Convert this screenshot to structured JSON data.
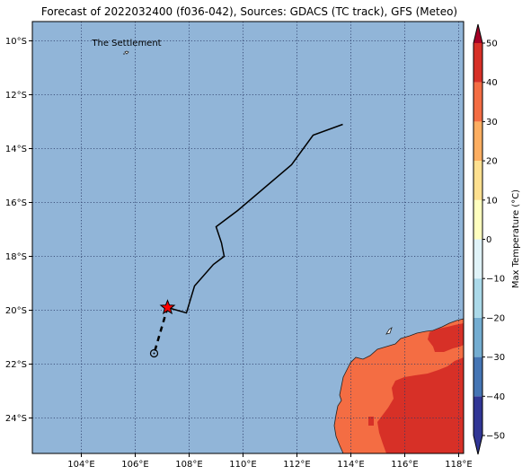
{
  "title": "Forecast of 2022032400 (f036-042), Sources: GDACS (TC track), GFS (Meteo)",
  "map": {
    "place_label": "The Settlement",
    "lon_ticks": [
      "104°E",
      "106°E",
      "108°E",
      "110°E",
      "112°E",
      "114°E",
      "116°E",
      "118°E"
    ],
    "lat_ticks": [
      "10°S",
      "12°S",
      "14°S",
      "16°S",
      "18°S",
      "20°S",
      "22°S",
      "24°S"
    ],
    "ocean_color": "#91b5d8",
    "land_colors": {
      "hot": "#d73027",
      "warm": "#f46d43"
    },
    "track": {
      "past_lonlat": [
        [
          113.7,
          -13.1
        ],
        [
          112.6,
          -13.5
        ],
        [
          111.8,
          -14.6
        ],
        [
          109.8,
          -16.3
        ],
        [
          109.0,
          -16.9
        ],
        [
          109.2,
          -17.5
        ],
        [
          109.3,
          -18.0
        ],
        [
          108.9,
          -18.3
        ],
        [
          108.2,
          -19.1
        ],
        [
          107.9,
          -20.1
        ],
        [
          107.2,
          -19.9
        ]
      ],
      "current_position": [
        107.2,
        -19.9
      ],
      "forecast_lonlat": [
        [
          107.2,
          -19.9
        ],
        [
          106.7,
          -21.6
        ]
      ],
      "current_marker_color": "#ff0000",
      "track_color": "#000000"
    }
  },
  "colorbar": {
    "label": "Max Temperature (°C)",
    "tick_labels": [
      "50",
      "40",
      "30",
      "20",
      "10",
      "0",
      "−10",
      "−20",
      "−30",
      "−40",
      "−50"
    ],
    "colors": [
      "#313695",
      "#4575b4",
      "#74add1",
      "#abd9e9",
      "#e0f3f8",
      "#ffffbf",
      "#fee090",
      "#fdae61",
      "#f46d43",
      "#d73027",
      "#a50026"
    ]
  }
}
